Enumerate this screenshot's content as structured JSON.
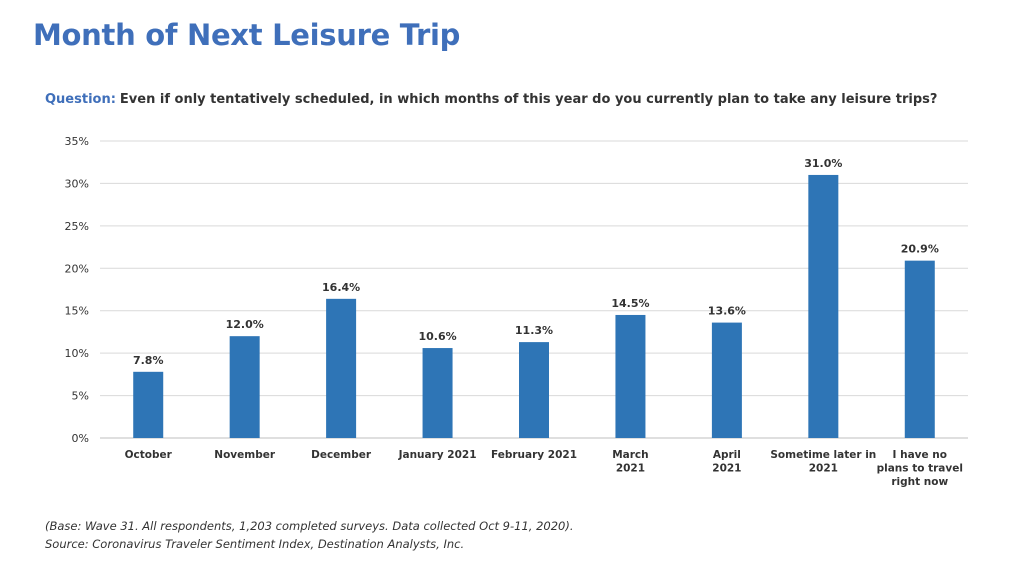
{
  "title": "Month of Next Leisure Trip",
  "question_label": "Question:",
  "question_text": "Even if only tentatively  scheduled, in which months of this year do you currently plan to take any leisure trips?",
  "footnote": {
    "base": "(Base: Wave 31. All respondents, 1,203  completed surveys. Data collected Oct 9-11,  2020).",
    "source": "Source: Coronavirus Traveler Sentiment Index, Destination Analysts, Inc."
  },
  "colors": {
    "title": "#3f6fba",
    "bar": "#2e75b6",
    "grid": "#d9d9d9",
    "text": "#333333"
  },
  "chart_data": {
    "type": "bar",
    "categories": [
      [
        "October"
      ],
      [
        "November"
      ],
      [
        "December"
      ],
      [
        "January 2021"
      ],
      [
        "February 2021"
      ],
      [
        "March",
        "2021"
      ],
      [
        "April",
        "2021"
      ],
      [
        "Sometime later in",
        "2021"
      ],
      [
        "I have no",
        "plans to travel",
        "right now"
      ]
    ],
    "values": [
      7.8,
      12.0,
      16.4,
      10.6,
      11.3,
      14.5,
      13.6,
      31.0,
      20.9
    ],
    "data_labels": [
      "7.8%",
      "12.0%",
      "16.4%",
      "10.6%",
      "11.3%",
      "14.5%",
      "13.6%",
      "31.0%",
      "20.9%"
    ],
    "y_ticks": [
      "0%",
      "5%",
      "10%",
      "15%",
      "20%",
      "25%",
      "30%",
      "35%"
    ],
    "y_tick_values": [
      0,
      5,
      10,
      15,
      20,
      25,
      30,
      35
    ],
    "ylim": [
      0,
      35
    ],
    "grid": true,
    "legend": "none"
  }
}
